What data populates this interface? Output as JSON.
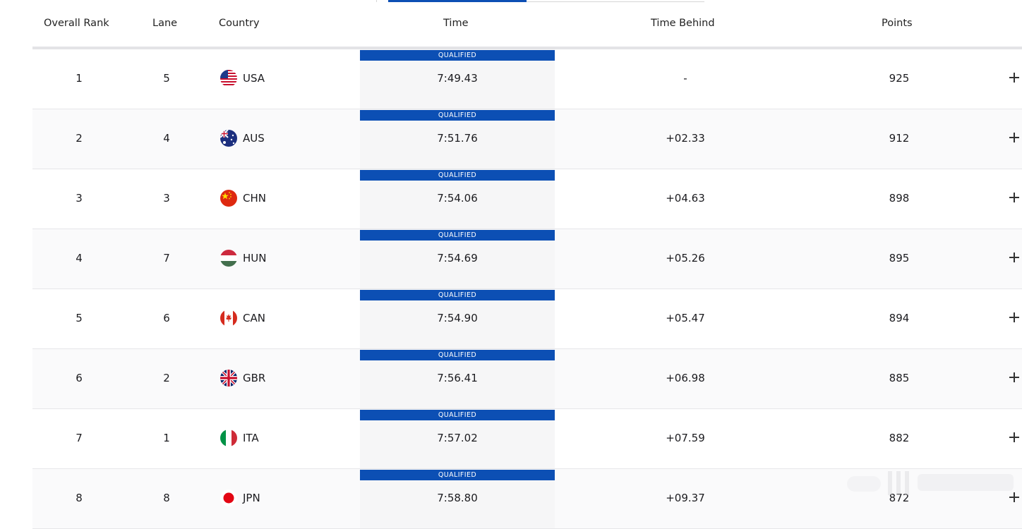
{
  "header": {
    "rank": "Overall Rank",
    "lane": "Lane",
    "country": "Country",
    "time": "Time",
    "behind": "Time Behind",
    "points": "Points"
  },
  "qualified_label": "QUALIFIED",
  "rows": [
    {
      "rank": "1",
      "lane": "5",
      "country": "USA",
      "time": "7:49.43",
      "behind": "-",
      "points": "925"
    },
    {
      "rank": "2",
      "lane": "4",
      "country": "AUS",
      "time": "7:51.76",
      "behind": "+02.33",
      "points": "912"
    },
    {
      "rank": "3",
      "lane": "3",
      "country": "CHN",
      "time": "7:54.06",
      "behind": "+04.63",
      "points": "898"
    },
    {
      "rank": "4",
      "lane": "7",
      "country": "HUN",
      "time": "7:54.69",
      "behind": "+05.26",
      "points": "895"
    },
    {
      "rank": "5",
      "lane": "6",
      "country": "CAN",
      "time": "7:54.90",
      "behind": "+05.47",
      "points": "894"
    },
    {
      "rank": "6",
      "lane": "2",
      "country": "GBR",
      "time": "7:56.41",
      "behind": "+06.98",
      "points": "885"
    },
    {
      "rank": "7",
      "lane": "1",
      "country": "ITA",
      "time": "7:57.02",
      "behind": "+07.59",
      "points": "882"
    },
    {
      "rank": "8",
      "lane": "8",
      "country": "JPN",
      "time": "7:58.80",
      "behind": "+09.37",
      "points": "872"
    }
  ],
  "flags": [
    "usa-flag-icon",
    "aus-flag-icon",
    "chn-flag-icon",
    "hun-flag-icon",
    "can-flag-icon",
    "gbr-flag-icon",
    "ita-flag-icon",
    "jpn-flag-icon"
  ],
  "colors": {
    "accent": "#0c4fb4",
    "row_alt": "#fafafb",
    "time_cell": "#f6f6f7"
  }
}
